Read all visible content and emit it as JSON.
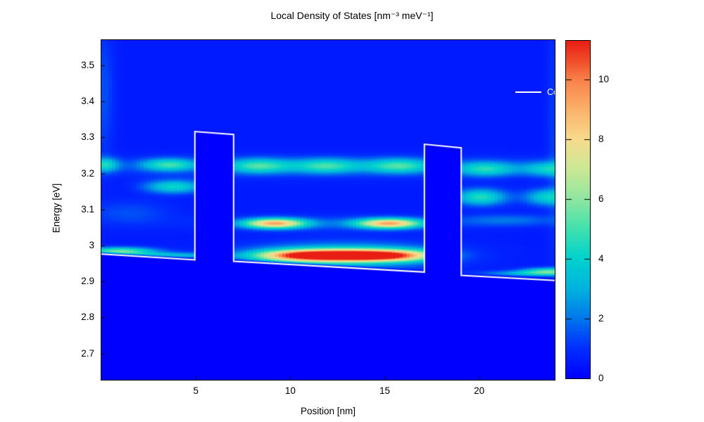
{
  "chart_data": {
    "type": "heatmap",
    "title": "Local Density of States [nm⁻³ meV⁻¹]",
    "xlabel": "Position [nm]",
    "ylabel": "Energy [eV]",
    "xlim": [
      0,
      24
    ],
    "ylim": [
      2.627,
      3.57
    ],
    "x_ticks": [
      5,
      10,
      15,
      20
    ],
    "y_tick_values": [
      3.5,
      3.4,
      3.3,
      3.2,
      3.1,
      3.0,
      2.9,
      2.8,
      2.7
    ],
    "y_tick_labels": [
      "3.5",
      "3.4",
      "3.3",
      "3.2",
      "3.1",
      "3",
      "2.9",
      "2.8",
      "2.7"
    ],
    "grid": false,
    "legend": {
      "label": "Conduction Band Edge",
      "position": "top-right-inside",
      "line_color": "#ffffff"
    },
    "colorbar": {
      "vmin": 0,
      "vmax": 11.3,
      "tick_values": [
        0,
        2,
        4,
        6,
        8,
        10
      ],
      "tick_labels": [
        "0",
        "2",
        "4",
        "6",
        "8",
        "10"
      ],
      "colormap_stops": [
        [
          0.0,
          "#0000ff"
        ],
        [
          0.09,
          "#0030ff"
        ],
        [
          0.177,
          "#0077ec"
        ],
        [
          0.265,
          "#00b3df"
        ],
        [
          0.354,
          "#00d2ce"
        ],
        [
          0.44,
          "#3fe0ae"
        ],
        [
          0.53,
          "#8fe6a0"
        ],
        [
          0.62,
          "#cbe895"
        ],
        [
          0.706,
          "#f7dc8e"
        ],
        [
          0.795,
          "#fbb36b"
        ],
        [
          0.884,
          "#f9824a"
        ],
        [
          0.945,
          "#f04a28"
        ],
        [
          1.0,
          "#e81e14"
        ]
      ]
    },
    "band_edge": {
      "name": "Conduction Band Edge",
      "color": "#ffffff",
      "x_nm": [
        0.0,
        4.95,
        4.95,
        7.0,
        7.0,
        17.1,
        17.1,
        19.05,
        19.05,
        24.0
      ],
      "E_eV": [
        2.976,
        2.96,
        3.316,
        3.308,
        2.956,
        2.926,
        3.281,
        3.271,
        2.917,
        2.903
      ]
    },
    "ldos_features": [
      {
        "name": "well-ground-state-core",
        "x": 12.9,
        "E": 2.972,
        "sx": 3.0,
        "sE": 0.011,
        "a": 12.0,
        "p": 1.5
      },
      {
        "name": "well-ground-state-halo",
        "x": 12.9,
        "E": 2.972,
        "sx": 3.4,
        "sE": 0.024,
        "a": 3.6
      },
      {
        "name": "well-state2-lobe-left",
        "x": 9.17,
        "E": 3.061,
        "sx": 1.15,
        "sE": 0.0095,
        "a": 8.0
      },
      {
        "name": "well-state2-lobe-right",
        "x": 15.24,
        "E": 3.061,
        "sx": 1.2,
        "sE": 0.0095,
        "a": 8.0
      },
      {
        "name": "well-state2-band",
        "x": 12.2,
        "E": 3.061,
        "sx": 4.5,
        "sE": 0.015,
        "a": 1.0
      },
      {
        "name": "well-state3-lobe-a",
        "x": 8.35,
        "E": 3.221,
        "sx": 1.15,
        "sE": 0.014,
        "a": 3.8
      },
      {
        "name": "well-state3-lobe-b",
        "x": 11.89,
        "E": 3.221,
        "sx": 1.2,
        "sE": 0.014,
        "a": 3.6
      },
      {
        "name": "well-state3-lobe-c",
        "x": 15.73,
        "E": 3.221,
        "sx": 1.2,
        "sE": 0.014,
        "a": 3.8
      },
      {
        "name": "continuum-row-band",
        "x": 12.0,
        "E": 3.218,
        "sx": 11.0,
        "sE": 0.02,
        "a": 1.0
      },
      {
        "name": "left-lead-upper-edge",
        "x": 0.22,
        "E": 3.224,
        "sx": 0.5,
        "sE": 0.013,
        "a": 3.2
      },
      {
        "name": "left-lead-upper",
        "x": 3.58,
        "E": 3.224,
        "sx": 1.0,
        "sE": 0.012,
        "a": 3.8
      },
      {
        "name": "left-lead-lower",
        "x": 3.84,
        "E": 3.163,
        "sx": 1.05,
        "sE": 0.013,
        "a": 3.6
      },
      {
        "name": "left-lead-faint",
        "x": 1.5,
        "E": 3.09,
        "sx": 1.6,
        "sE": 0.025,
        "a": 0.9
      },
      {
        "name": "right-lead-upper",
        "x": 20.35,
        "E": 3.212,
        "sx": 1.1,
        "sE": 0.014,
        "a": 3.4
      },
      {
        "name": "right-lead-upper-edge",
        "x": 23.63,
        "E": 3.212,
        "sx": 0.9,
        "sE": 0.014,
        "a": 3.0
      },
      {
        "name": "right-lead-mid",
        "x": 20.09,
        "E": 3.134,
        "sx": 0.95,
        "sE": 0.016,
        "a": 4.0
      },
      {
        "name": "right-lead-mid-edge",
        "x": 23.63,
        "E": 3.134,
        "sx": 0.85,
        "sE": 0.016,
        "a": 3.4
      },
      {
        "name": "right-lead-faint-row",
        "x": 21.5,
        "E": 3.07,
        "sx": 2.0,
        "sE": 0.012,
        "a": 1.4
      },
      {
        "name": "left-accumulation-bright",
        "x": 0.97,
        "E": 2.984,
        "sx": 1.3,
        "sE": 0.0075,
        "a": 5.0
      },
      {
        "name": "left-accumulation-tail",
        "x": 3.39,
        "E": 2.972,
        "sx": 2.0,
        "sE": 0.006,
        "a": 2.8
      },
      {
        "name": "right-accumulation-edge",
        "x": 23.7,
        "E": 2.928,
        "sx": 1.0,
        "sE": 0.007,
        "a": 4.2
      },
      {
        "name": "right-accumulation-tail",
        "x": 22.4,
        "E": 2.922,
        "sx": 1.6,
        "sE": 0.0055,
        "a": 2.2
      },
      {
        "name": "left-edge-streak",
        "x": 0.12,
        "E": 3.42,
        "sx": 0.4,
        "sE": 0.13,
        "a": 0.9
      },
      {
        "name": "right-edge-streak",
        "x": 23.92,
        "E": 3.3,
        "sx": 0.25,
        "sE": 0.25,
        "a": 0.6
      }
    ],
    "background": {
      "above_band_edge": 0.55,
      "below_band_edge": 0.0,
      "edge_softness_eV": 0.008
    },
    "mesh_stripe_nm": 0.1875
  }
}
